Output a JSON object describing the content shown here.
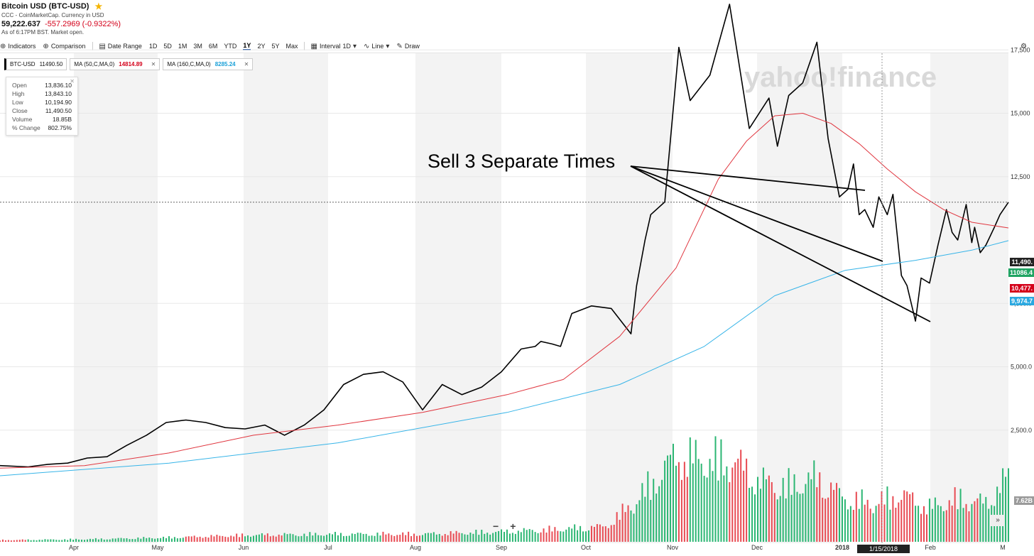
{
  "header": {
    "title": "Bitcoin USD (BTC-USD)",
    "source": "CCC - CoinMarketCap. Currency in USD",
    "price": "59,222.637",
    "change": "-557.2969 (-0.9322%)",
    "as_of": "As of 6:17PM BST. Market open."
  },
  "toolbar": {
    "indicators": "Indicators",
    "comparison": "Comparison",
    "date_range": "Date Range",
    "ranges": [
      "1D",
      "5D",
      "1M",
      "3M",
      "6M",
      "YTD",
      "1Y",
      "2Y",
      "5Y",
      "Max"
    ],
    "active_range": "1Y",
    "interval": "Interval",
    "interval_value": "1D",
    "chart_type": "Line",
    "draw": "Draw"
  },
  "chips": {
    "symbol": "BTC-USD",
    "symbol_value": "11490.50",
    "ma50_label": "MA (50,C,MA,0)",
    "ma50_value": "14814.89",
    "ma160_label": "MA (160,C,MA,0)",
    "ma160_value": "8285.24"
  },
  "tooltip": {
    "open_label": "Open",
    "open": "13,836.10",
    "high_label": "High",
    "high": "13,843.10",
    "low_label": "Low",
    "low": "10,194.90",
    "close_label": "Close",
    "close": "11,490.50",
    "volume_label": "Volume",
    "volume": "18.85B",
    "change_label": "% Change",
    "change": "802.75%"
  },
  "annotation": "Sell 3 Separate Times",
  "watermark": "yahoo!finance",
  "price_tags": {
    "last": "11,490.",
    "ma_green": "11086.4",
    "ma_red": "10,477.",
    "ma_blue": "9,974.7",
    "volume": "7.62B"
  },
  "crosshair_date": "1/15/2018",
  "zoom": {
    "minus": "−",
    "plus": "+"
  },
  "expand_icon": "»",
  "colors": {
    "price": "#000000",
    "ma50": "#e0363f",
    "ma160": "#36b4e8",
    "vol_up": "#2bb673",
    "vol_down": "#e84a52",
    "band": "#f3f3f3"
  },
  "chart_data": {
    "type": "line",
    "x_tick_labels": [
      "Apr",
      "May",
      "Jun",
      "Jul",
      "Aug",
      "Sep",
      "Oct",
      "Nov",
      "Dec",
      "2018",
      "Feb",
      "M"
    ],
    "y_tick_labels": [
      "2,500.0",
      "5,000.0",
      "7,500.0",
      "12,500",
      "15,000",
      "17,500"
    ],
    "ylim": [
      0,
      20000
    ],
    "x_days_from": "2017-03-08",
    "x_days_to": "2018-03-01",
    "series": [
      {
        "name": "BTC-USD",
        "x": [
          0,
          10,
          17,
          24,
          31,
          38,
          45,
          52,
          59,
          66,
          73,
          80,
          87,
          94,
          101,
          108,
          115,
          122,
          129,
          136,
          143,
          150,
          157,
          164,
          171,
          178,
          185,
          190,
          192,
          196,
          199,
          203,
          210,
          217,
          224,
          226,
          229,
          231,
          236,
          241,
          245,
          252,
          259,
          266,
          273,
          276,
          280,
          285,
          290,
          294,
          298,
          301,
          303,
          305,
          307,
          310,
          312,
          315,
          317,
          320,
          322,
          325,
          327,
          330,
          333,
          336,
          338,
          340,
          343,
          345,
          346,
          348,
          350,
          353,
          355,
          358
        ],
        "y": [
          1100,
          1050,
          1150,
          1200,
          1400,
          1450,
          1900,
          2300,
          2800,
          2900,
          2800,
          2600,
          2550,
          2700,
          2300,
          2700,
          3300,
          4300,
          4700,
          4800,
          4400,
          3300,
          4300,
          3900,
          4200,
          4800,
          5700,
          5800,
          6000,
          5900,
          5800,
          7100,
          7400,
          7300,
          6300,
          8200,
          10000,
          11000,
          11500,
          17600,
          15500,
          16500,
          19300,
          14400,
          15600,
          13700,
          15700,
          16200,
          17800,
          14000,
          11700,
          12000,
          13000,
          11000,
          11200,
          10500,
          11700,
          11000,
          11800,
          8600,
          8200,
          6800,
          8500,
          8300,
          9800,
          11200,
          10300,
          10000,
          11400,
          9900,
          10500,
          9500,
          9800,
          10500,
          11000,
          11490.5
        ]
      },
      {
        "name": "MA (50,C,MA,0)",
        "x": [
          0,
          30,
          60,
          90,
          120,
          150,
          180,
          200,
          220,
          240,
          255,
          265,
          275,
          285,
          295,
          305,
          315,
          325,
          335,
          345,
          358
        ],
        "y": [
          1000,
          1100,
          1600,
          2300,
          2700,
          3200,
          3900,
          4500,
          6200,
          8900,
          12400,
          13900,
          14900,
          15000,
          14600,
          13800,
          12800,
          11900,
          11200,
          10700,
          10477
        ]
      },
      {
        "name": "MA (160,C,MA,0)",
        "x": [
          0,
          60,
          120,
          180,
          220,
          250,
          275,
          300,
          325,
          345,
          358
        ],
        "y": [
          700,
          1200,
          2000,
          3200,
          4300,
          5800,
          7800,
          8800,
          9200,
          9600,
          9974.7
        ]
      }
    ],
    "volume": {
      "label": "Volume",
      "unit": "billions USD",
      "x": [
        0,
        30,
        60,
        90,
        120,
        150,
        180,
        200,
        215,
        225,
        240,
        250,
        260,
        270,
        280,
        290,
        300,
        310,
        320,
        330,
        340,
        350,
        358
      ],
      "y": [
        0.2,
        0.3,
        0.5,
        0.8,
        0.9,
        0.9,
        1.2,
        1.5,
        1.8,
        4.5,
        10.0,
        9.5,
        9.5,
        7.0,
        6.5,
        7.5,
        5.0,
        4.5,
        5.5,
        4.0,
        5.0,
        4.5,
        7.62
      ]
    }
  }
}
